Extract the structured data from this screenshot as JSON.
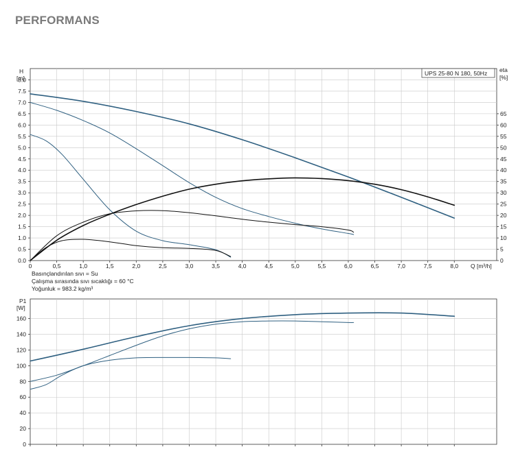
{
  "page": {
    "heading": "PERFORMANS"
  },
  "colors": {
    "blue": "#2e5f80",
    "black": "#111111",
    "grid": "#c8c8c8",
    "axis": "#333333"
  },
  "chart_data": [
    {
      "type": "line",
      "name_box": "UPS 25-80 N 180, 50Hz",
      "y_label": {
        "line1": "H",
        "line2": "[m]"
      },
      "y2_label": {
        "line1": "eta",
        "line2": "[%]"
      },
      "x_label": "Q [m³/h]",
      "xlim": [
        0,
        8.8
      ],
      "ylim": [
        0,
        8.5
      ],
      "y2lim": [
        0,
        85
      ],
      "x_ticks": [
        0,
        0.5,
        1.0,
        1.5,
        2.0,
        2.5,
        3.0,
        3.5,
        4.0,
        4.5,
        5.0,
        5.5,
        6.0,
        6.5,
        7.0,
        7.5,
        8.0
      ],
      "x_tick_labels": [
        "0",
        "0,5",
        "1,0",
        "1,5",
        "2,0",
        "2,5",
        "3,0",
        "3,5",
        "4,0",
        "4,5",
        "5,0",
        "5,5",
        "6,0",
        "6,5",
        "7,0",
        "7,5",
        "8,0"
      ],
      "y_ticks": [
        0,
        0.5,
        1.0,
        1.5,
        2.0,
        2.5,
        3.0,
        3.5,
        4.0,
        4.5,
        5.0,
        5.5,
        6.0,
        6.5,
        7.0,
        7.5,
        8.0
      ],
      "y_tick_labels": [
        "0.0",
        "0.5",
        "1.0",
        "1.5",
        "2.0",
        "2.5",
        "3.0",
        "3.5",
        "4.0",
        "4.5",
        "5.0",
        "5.5",
        "6.0",
        "6.5",
        "7.0",
        "7.5",
        "8.0"
      ],
      "y2_ticks": [
        0,
        5,
        10,
        15,
        20,
        25,
        30,
        35,
        40,
        45,
        50,
        55,
        60,
        65
      ],
      "y2_tick_labels": [
        "0",
        "5",
        "10",
        "15",
        "20",
        "25",
        "30",
        "35",
        "40",
        "45",
        "50",
        "55",
        "60",
        "65"
      ],
      "grid": true,
      "notes": [
        "Basınçlandırılan sıvı = Su",
        "Çalışma sırasında sıvı sıcaklığı = 60 °C",
        "Yoğunluk = 983.2 kg/m³"
      ],
      "series": [
        {
          "kind": "head",
          "color": "blue",
          "width": 1.6,
          "x": [
            0,
            1,
            2,
            3,
            4,
            5,
            6,
            7,
            8
          ],
          "y": [
            7.38,
            7.05,
            6.6,
            6.05,
            5.35,
            4.55,
            3.7,
            2.8,
            1.88
          ]
        },
        {
          "kind": "head",
          "color": "blue",
          "width": 1.0,
          "x": [
            0,
            0.5,
            1,
            1.5,
            2,
            2.5,
            3,
            3.5,
            4,
            4.5,
            5,
            5.5,
            6,
            6.1
          ],
          "y": [
            7.0,
            6.65,
            6.2,
            5.65,
            4.95,
            4.2,
            3.45,
            2.8,
            2.3,
            1.95,
            1.65,
            1.4,
            1.2,
            1.15
          ]
        },
        {
          "kind": "head",
          "color": "blue",
          "width": 1.0,
          "x": [
            0,
            0.3,
            0.6,
            1.0,
            1.5,
            2.0,
            2.5,
            3.0,
            3.5,
            3.78
          ],
          "y": [
            5.58,
            5.3,
            4.7,
            3.6,
            2.25,
            1.3,
            0.88,
            0.7,
            0.48,
            0.15
          ]
        },
        {
          "kind": "eta",
          "color": "black",
          "width": 1.6,
          "x": [
            0,
            0.5,
            1,
            1.5,
            2,
            2.5,
            3,
            3.5,
            4,
            4.5,
            5,
            5.5,
            6,
            6.5,
            7,
            7.5,
            8
          ],
          "y": [
            0,
            9,
            15.5,
            20.5,
            24.8,
            28.5,
            31.6,
            33.8,
            35.3,
            36.2,
            36.6,
            36.3,
            35.4,
            33.8,
            31.4,
            28.2,
            24.5
          ]
        },
        {
          "kind": "eta",
          "color": "black",
          "width": 1.0,
          "x": [
            0,
            0.5,
            1,
            1.5,
            2,
            2.5,
            3,
            3.5,
            4,
            4.5,
            5,
            5.5,
            6,
            6.1
          ],
          "y": [
            0,
            11,
            17,
            20.7,
            22,
            22.1,
            21.2,
            19.8,
            18.3,
            17,
            15.9,
            15,
            13.5,
            12.5
          ]
        },
        {
          "kind": "eta",
          "color": "black",
          "width": 1.0,
          "x": [
            0,
            0.3,
            0.6,
            1.0,
            1.5,
            2.0,
            2.5,
            3.0,
            3.5,
            3.78
          ],
          "y": [
            0,
            5.8,
            8.8,
            9.4,
            8.3,
            6.6,
            5.7,
            5.4,
            4.5,
            1.8
          ]
        }
      ]
    },
    {
      "type": "line",
      "y_label": {
        "line1": "P1",
        "line2": "[W]"
      },
      "xlim": [
        0,
        8.8
      ],
      "ylim": [
        0,
        185
      ],
      "y_ticks": [
        0,
        20,
        40,
        60,
        80,
        100,
        120,
        140,
        160
      ],
      "y_tick_labels": [
        "0",
        "20",
        "40",
        "60",
        "80",
        "100",
        "120",
        "140",
        "160"
      ],
      "x_ticks": [
        0,
        0.5,
        1.0,
        1.5,
        2.0,
        2.5,
        3.0,
        3.5,
        4.0,
        4.5,
        5.0,
        5.5,
        6.0,
        6.5,
        7.0,
        7.5,
        8.0
      ],
      "grid": true,
      "series": [
        {
          "kind": "power",
          "color": "blue",
          "width": 1.6,
          "x": [
            0,
            1,
            2,
            3,
            4,
            5,
            6,
            7,
            8
          ],
          "y": [
            106,
            121,
            137,
            151,
            160,
            165,
            167,
            167,
            163
          ]
        },
        {
          "kind": "power",
          "color": "blue",
          "width": 1.0,
          "x": [
            0,
            0.5,
            1,
            1.5,
            2,
            2.5,
            3,
            3.5,
            4,
            4.5,
            5,
            5.5,
            6,
            6.1
          ],
          "y": [
            80,
            88,
            100,
            113,
            126,
            138,
            147,
            153,
            156,
            157,
            157,
            156,
            155,
            155
          ]
        },
        {
          "kind": "power",
          "color": "blue",
          "width": 1.0,
          "x": [
            0,
            0.3,
            0.6,
            1.0,
            1.5,
            2.0,
            2.5,
            3.0,
            3.5,
            3.78
          ],
          "y": [
            70,
            76,
            88,
            100,
            107,
            110,
            110.5,
            110.5,
            110,
            109
          ]
        }
      ]
    }
  ]
}
